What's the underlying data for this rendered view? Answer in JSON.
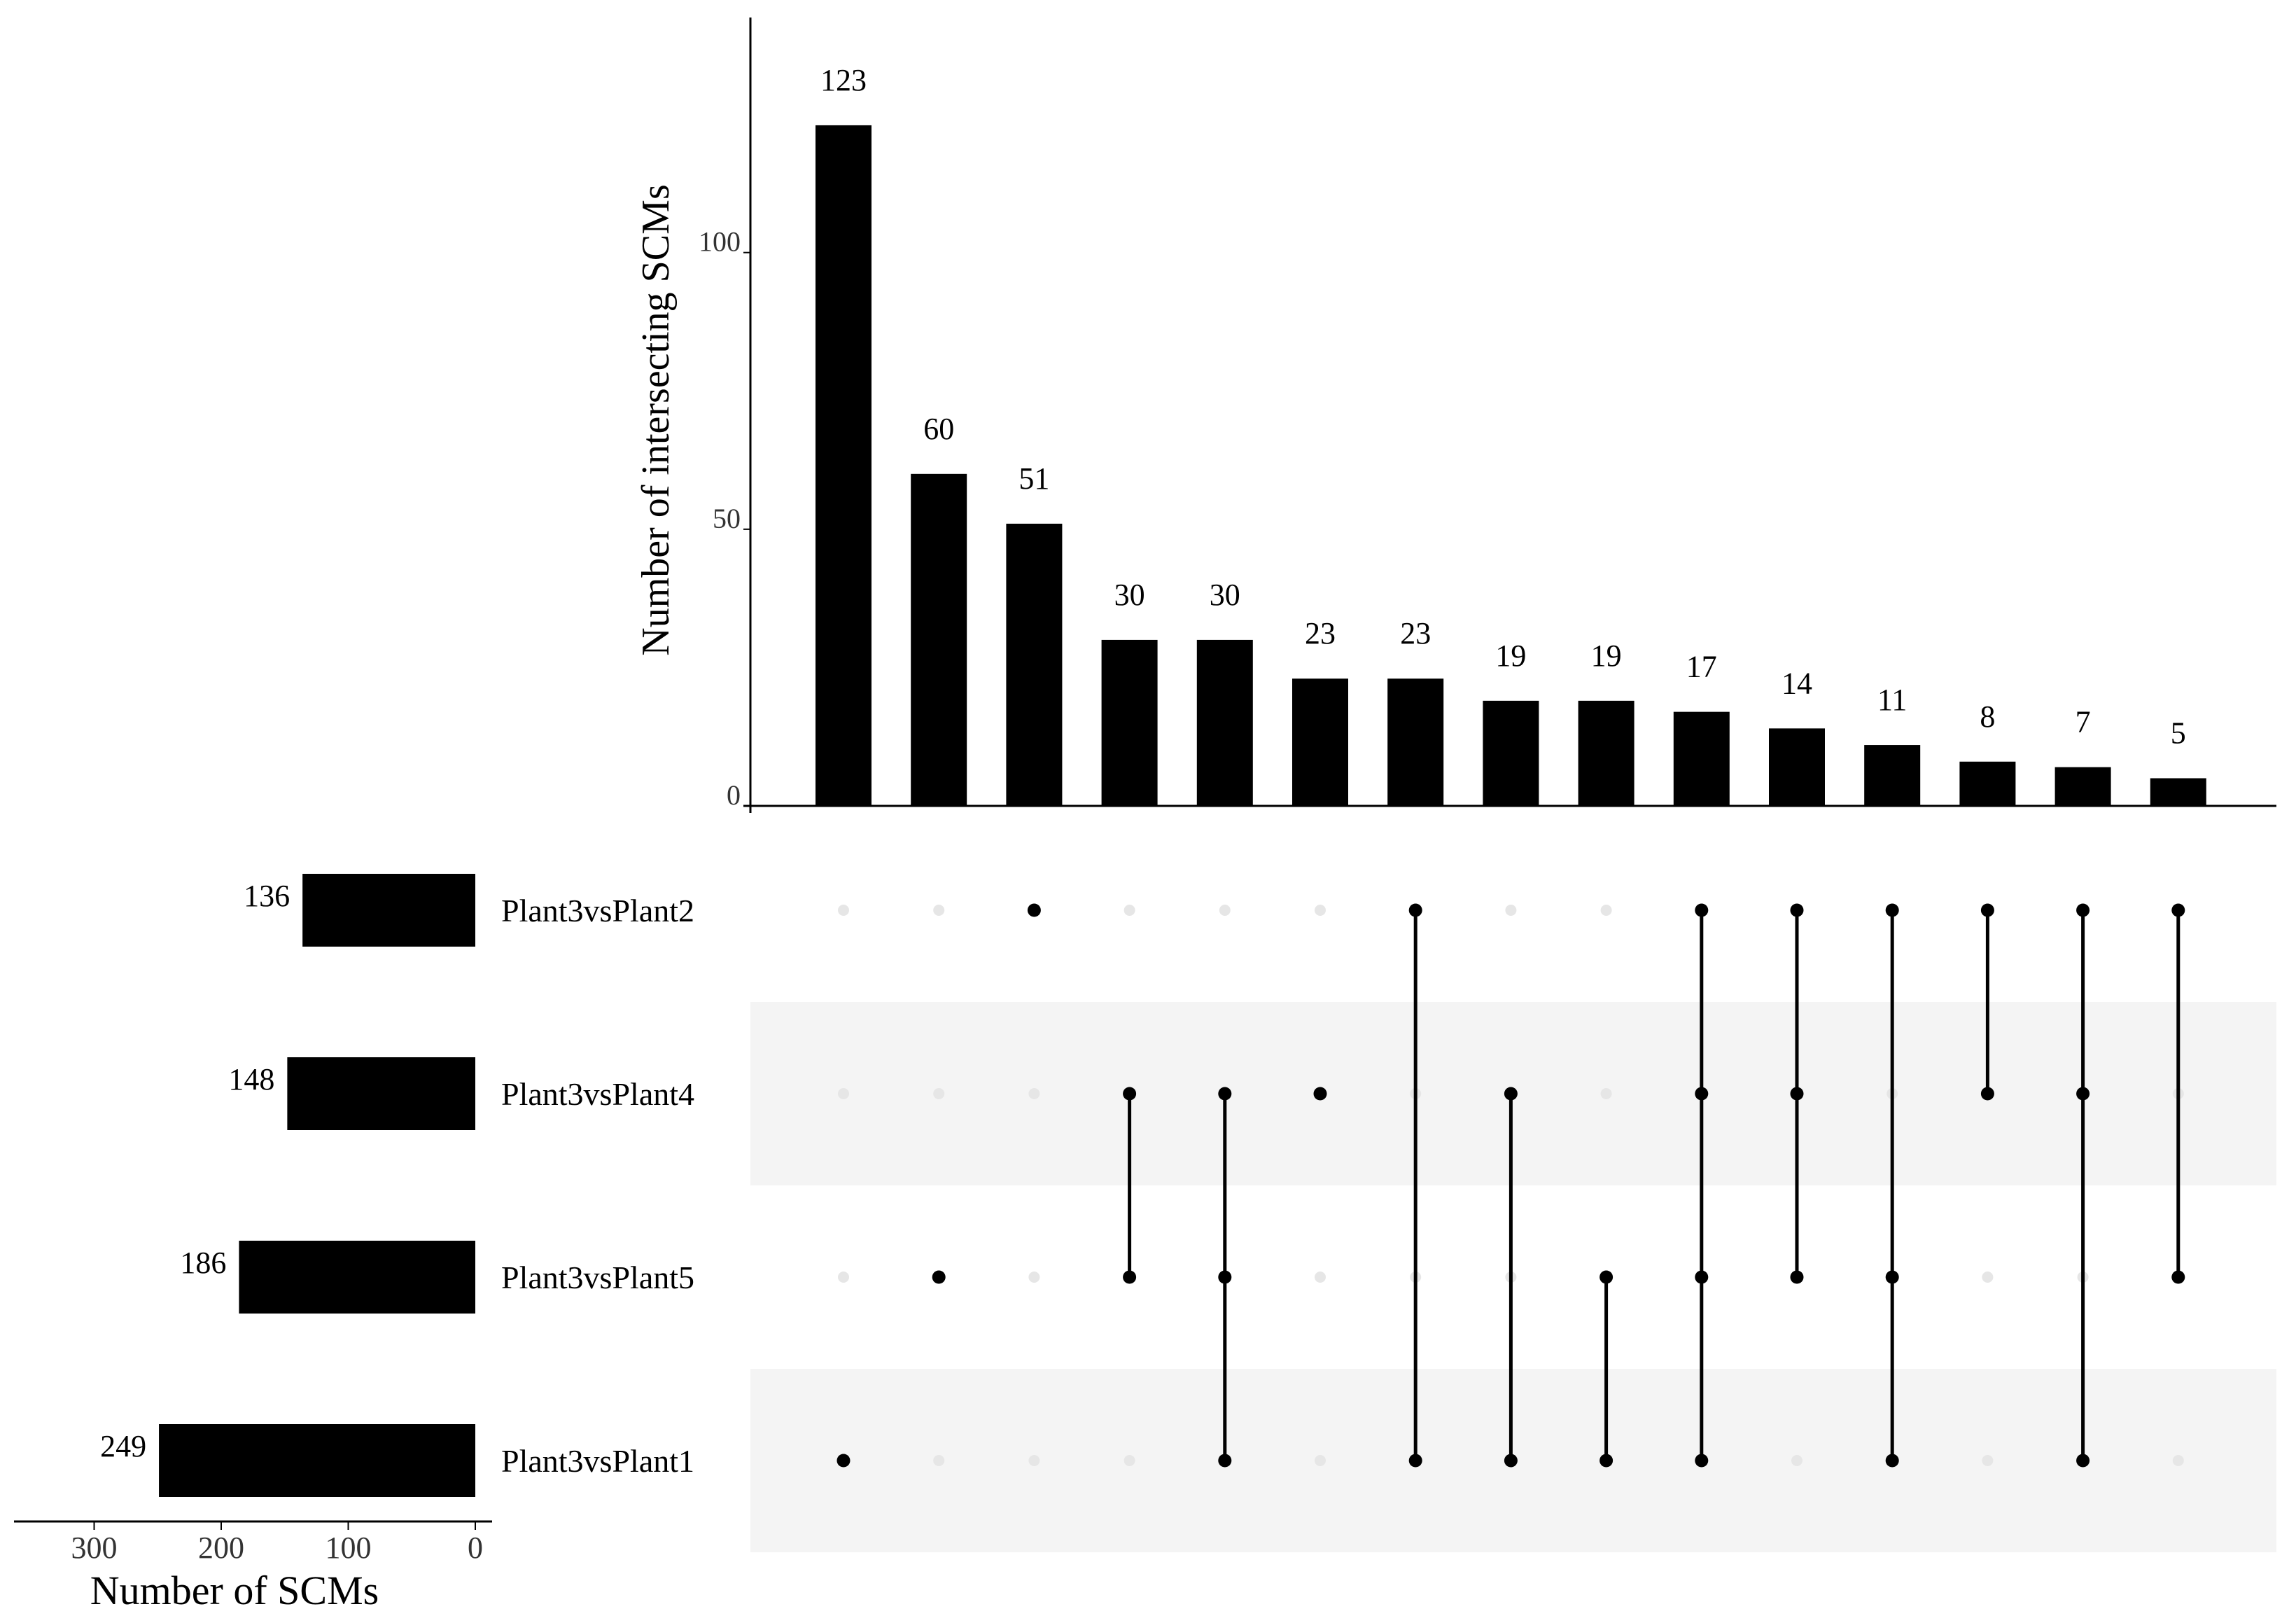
{
  "chart_data": {
    "type": "upset",
    "intersection_size": {
      "ylabel": "Number of intersecting SCMs",
      "ylim": [
        0,
        140
      ],
      "yticks": [
        0,
        50,
        100
      ],
      "values": [
        123,
        60,
        51,
        30,
        30,
        23,
        23,
        19,
        19,
        17,
        14,
        11,
        8,
        7,
        5
      ],
      "value_labels": [
        "123",
        "60",
        "51",
        "30",
        "30",
        "23",
        "23",
        "19",
        "19",
        "17",
        "14",
        "11",
        "8",
        "7",
        "5"
      ]
    },
    "sets": {
      "names": [
        "Plant3vsPlant2",
        "Plant3vsPlant4",
        "Plant3vsPlant5",
        "Plant3vsPlant1"
      ],
      "sizes": [
        136,
        148,
        186,
        249
      ],
      "size_labels": [
        "136",
        "148",
        "186",
        "249"
      ],
      "xlabel": "Number of SCMs",
      "xlim": [
        350,
        0
      ],
      "xticks": [
        300,
        200,
        100,
        0
      ],
      "xtick_labels": [
        "300",
        "200",
        "100",
        "0"
      ]
    },
    "intersections": [
      [
        "Plant3vsPlant1"
      ],
      [
        "Plant3vsPlant5"
      ],
      [
        "Plant3vsPlant2"
      ],
      [
        "Plant3vsPlant4",
        "Plant3vsPlant5"
      ],
      [
        "Plant3vsPlant4",
        "Plant3vsPlant5",
        "Plant3vsPlant1"
      ],
      [
        "Plant3vsPlant4"
      ],
      [
        "Plant3vsPlant2",
        "Plant3vsPlant1"
      ],
      [
        "Plant3vsPlant4",
        "Plant3vsPlant1"
      ],
      [
        "Plant3vsPlant5",
        "Plant3vsPlant1"
      ],
      [
        "Plant3vsPlant2",
        "Plant3vsPlant4",
        "Plant3vsPlant5",
        "Plant3vsPlant1"
      ],
      [
        "Plant3vsPlant2",
        "Plant3vsPlant4",
        "Plant3vsPlant5"
      ],
      [
        "Plant3vsPlant2",
        "Plant3vsPlant5",
        "Plant3vsPlant1"
      ],
      [
        "Plant3vsPlant2",
        "Plant3vsPlant4"
      ],
      [
        "Plant3vsPlant2",
        "Plant3vsPlant4",
        "Plant3vsPlant1"
      ],
      [
        "Plant3vsPlant2",
        "Plant3vsPlant5"
      ]
    ],
    "colors": {
      "bar": "#000000",
      "dot_active": "#000000",
      "dot_inactive": "#e6e6e6",
      "stripe": "#f4f4f4",
      "axis": "#000000",
      "tick_text": "#333333"
    }
  }
}
